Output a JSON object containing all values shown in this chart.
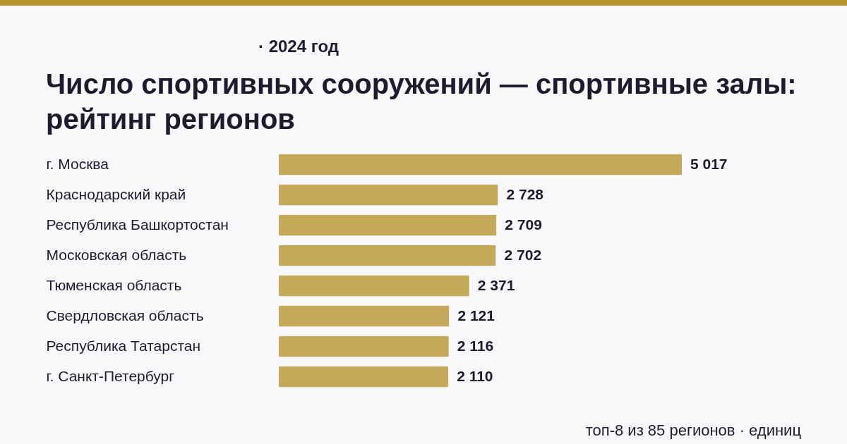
{
  "chart_data": {
    "type": "bar",
    "orientation": "horizontal",
    "title": "Число спортивных сооружений — спортивные залы: рейтинг регионов",
    "subtitle": "· 2024 год",
    "categories": [
      "г. Москва",
      "Краснодарский край",
      "Республика Башкортостан",
      "Московская область",
      "Тюменская область",
      "Свердловская область",
      "Республика Татарстан",
      "г. Санкт-Петербург"
    ],
    "values": [
      5017,
      2728,
      2709,
      2702,
      2371,
      2121,
      2116,
      2110
    ],
    "value_labels": [
      "5 017",
      "2 728",
      "2 709",
      "2 702",
      "2 371",
      "2 121",
      "2 116",
      "2 110"
    ],
    "color": "#c5a95a",
    "annotations": [
      "топ-8 из 85 регионов · единиц"
    ]
  }
}
